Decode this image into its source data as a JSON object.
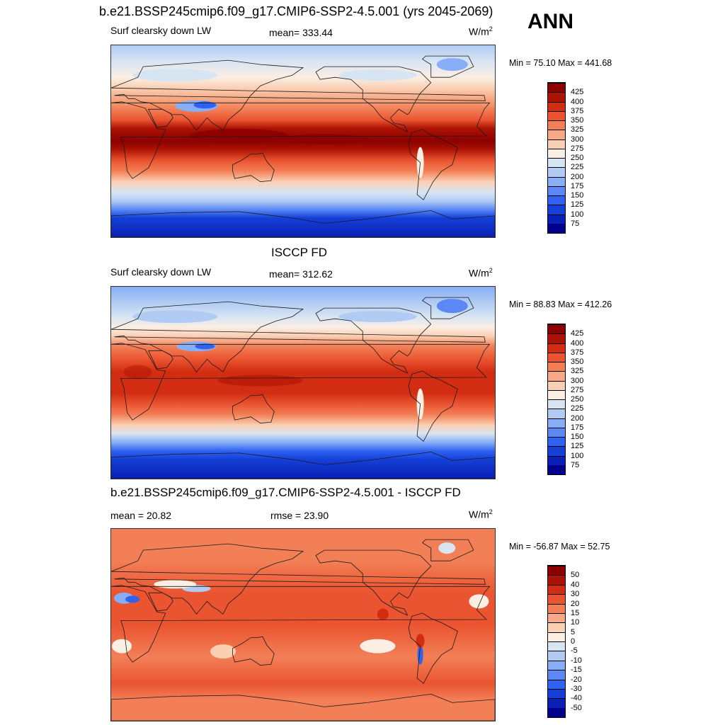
{
  "header": {
    "case_title": "b.e21.BSSP245cmip6.f09_g17.CMIP6-SSP2-4.5.001 (yrs 2045-2069)",
    "season": "ANN"
  },
  "panels": [
    {
      "title": "",
      "left_label": "Surf clearsky down LW",
      "center_label": "mean= 333.44",
      "units": "W/m",
      "units_sup": "2",
      "minmax": "Min =  75.10 Max = 441.68"
    },
    {
      "title": "ISCCP FD",
      "left_label": "Surf clearsky down LW",
      "center_label": "mean= 312.62",
      "units": "W/m",
      "units_sup": "2",
      "minmax": "Min =  88.83 Max = 412.26"
    },
    {
      "title": "b.e21.BSSP245cmip6.f09_g17.CMIP6-SSP2-4.5.001 - ISCCP FD",
      "left_label": "mean =  20.82",
      "center_label": "rmse =  23.90",
      "units": "W/m",
      "units_sup": "2",
      "minmax": "Min = -56.87 Max =  52.75"
    }
  ],
  "chart_data": [
    {
      "type": "heatmap",
      "title": "b.e21.BSSP245cmip6.f09_g17.CMIP6-SSP2-4.5.001 (yrs 2045-2069)",
      "variable": "Surf clearsky down LW",
      "units": "W/m2",
      "mean": 333.44,
      "min": 75.1,
      "max": 441.68,
      "colorbar_levels": [
        75,
        100,
        125,
        150,
        175,
        200,
        225,
        250,
        275,
        300,
        325,
        350,
        375,
        400,
        425
      ],
      "colors": [
        "#00008c",
        "#0a1fb4",
        "#1440d8",
        "#2f62f0",
        "#5b88f5",
        "#87aef6",
        "#b1cbf3",
        "#d7e5f3",
        "#fbeee3",
        "#fad0b5",
        "#f6a984",
        "#f27f56",
        "#ea5430",
        "#d22d12",
        "#ad1304",
        "#8c0000"
      ]
    },
    {
      "type": "heatmap",
      "title": "ISCCP FD",
      "variable": "Surf clearsky down LW",
      "units": "W/m2",
      "mean": 312.62,
      "min": 88.83,
      "max": 412.26,
      "colorbar_levels": [
        75,
        100,
        125,
        150,
        175,
        200,
        225,
        250,
        275,
        300,
        325,
        350,
        375,
        400,
        425
      ],
      "colors": [
        "#00008c",
        "#0a1fb4",
        "#1440d8",
        "#2f62f0",
        "#5b88f5",
        "#87aef6",
        "#b1cbf3",
        "#d7e5f3",
        "#fbeee3",
        "#fad0b5",
        "#f6a984",
        "#f27f56",
        "#ea5430",
        "#d22d12",
        "#ad1304",
        "#8c0000"
      ]
    },
    {
      "type": "heatmap",
      "title": "b.e21.BSSP245cmip6.f09_g17.CMIP6-SSP2-4.5.001 - ISCCP FD",
      "units": "W/m2",
      "mean": 20.82,
      "rmse": 23.9,
      "min": -56.87,
      "max": 52.75,
      "colorbar_levels": [
        -50,
        -40,
        -30,
        -20,
        -15,
        -10,
        -5,
        0,
        5,
        10,
        15,
        20,
        30,
        40,
        50
      ],
      "colors": [
        "#00008c",
        "#0a1fb4",
        "#1440d8",
        "#2f62f0",
        "#5b88f5",
        "#87aef6",
        "#b1cbf3",
        "#d7e5f3",
        "#fbeee3",
        "#fad0b5",
        "#f6a984",
        "#f27f56",
        "#ea5430",
        "#d22d12",
        "#ad1304",
        "#8c0000"
      ]
    }
  ]
}
